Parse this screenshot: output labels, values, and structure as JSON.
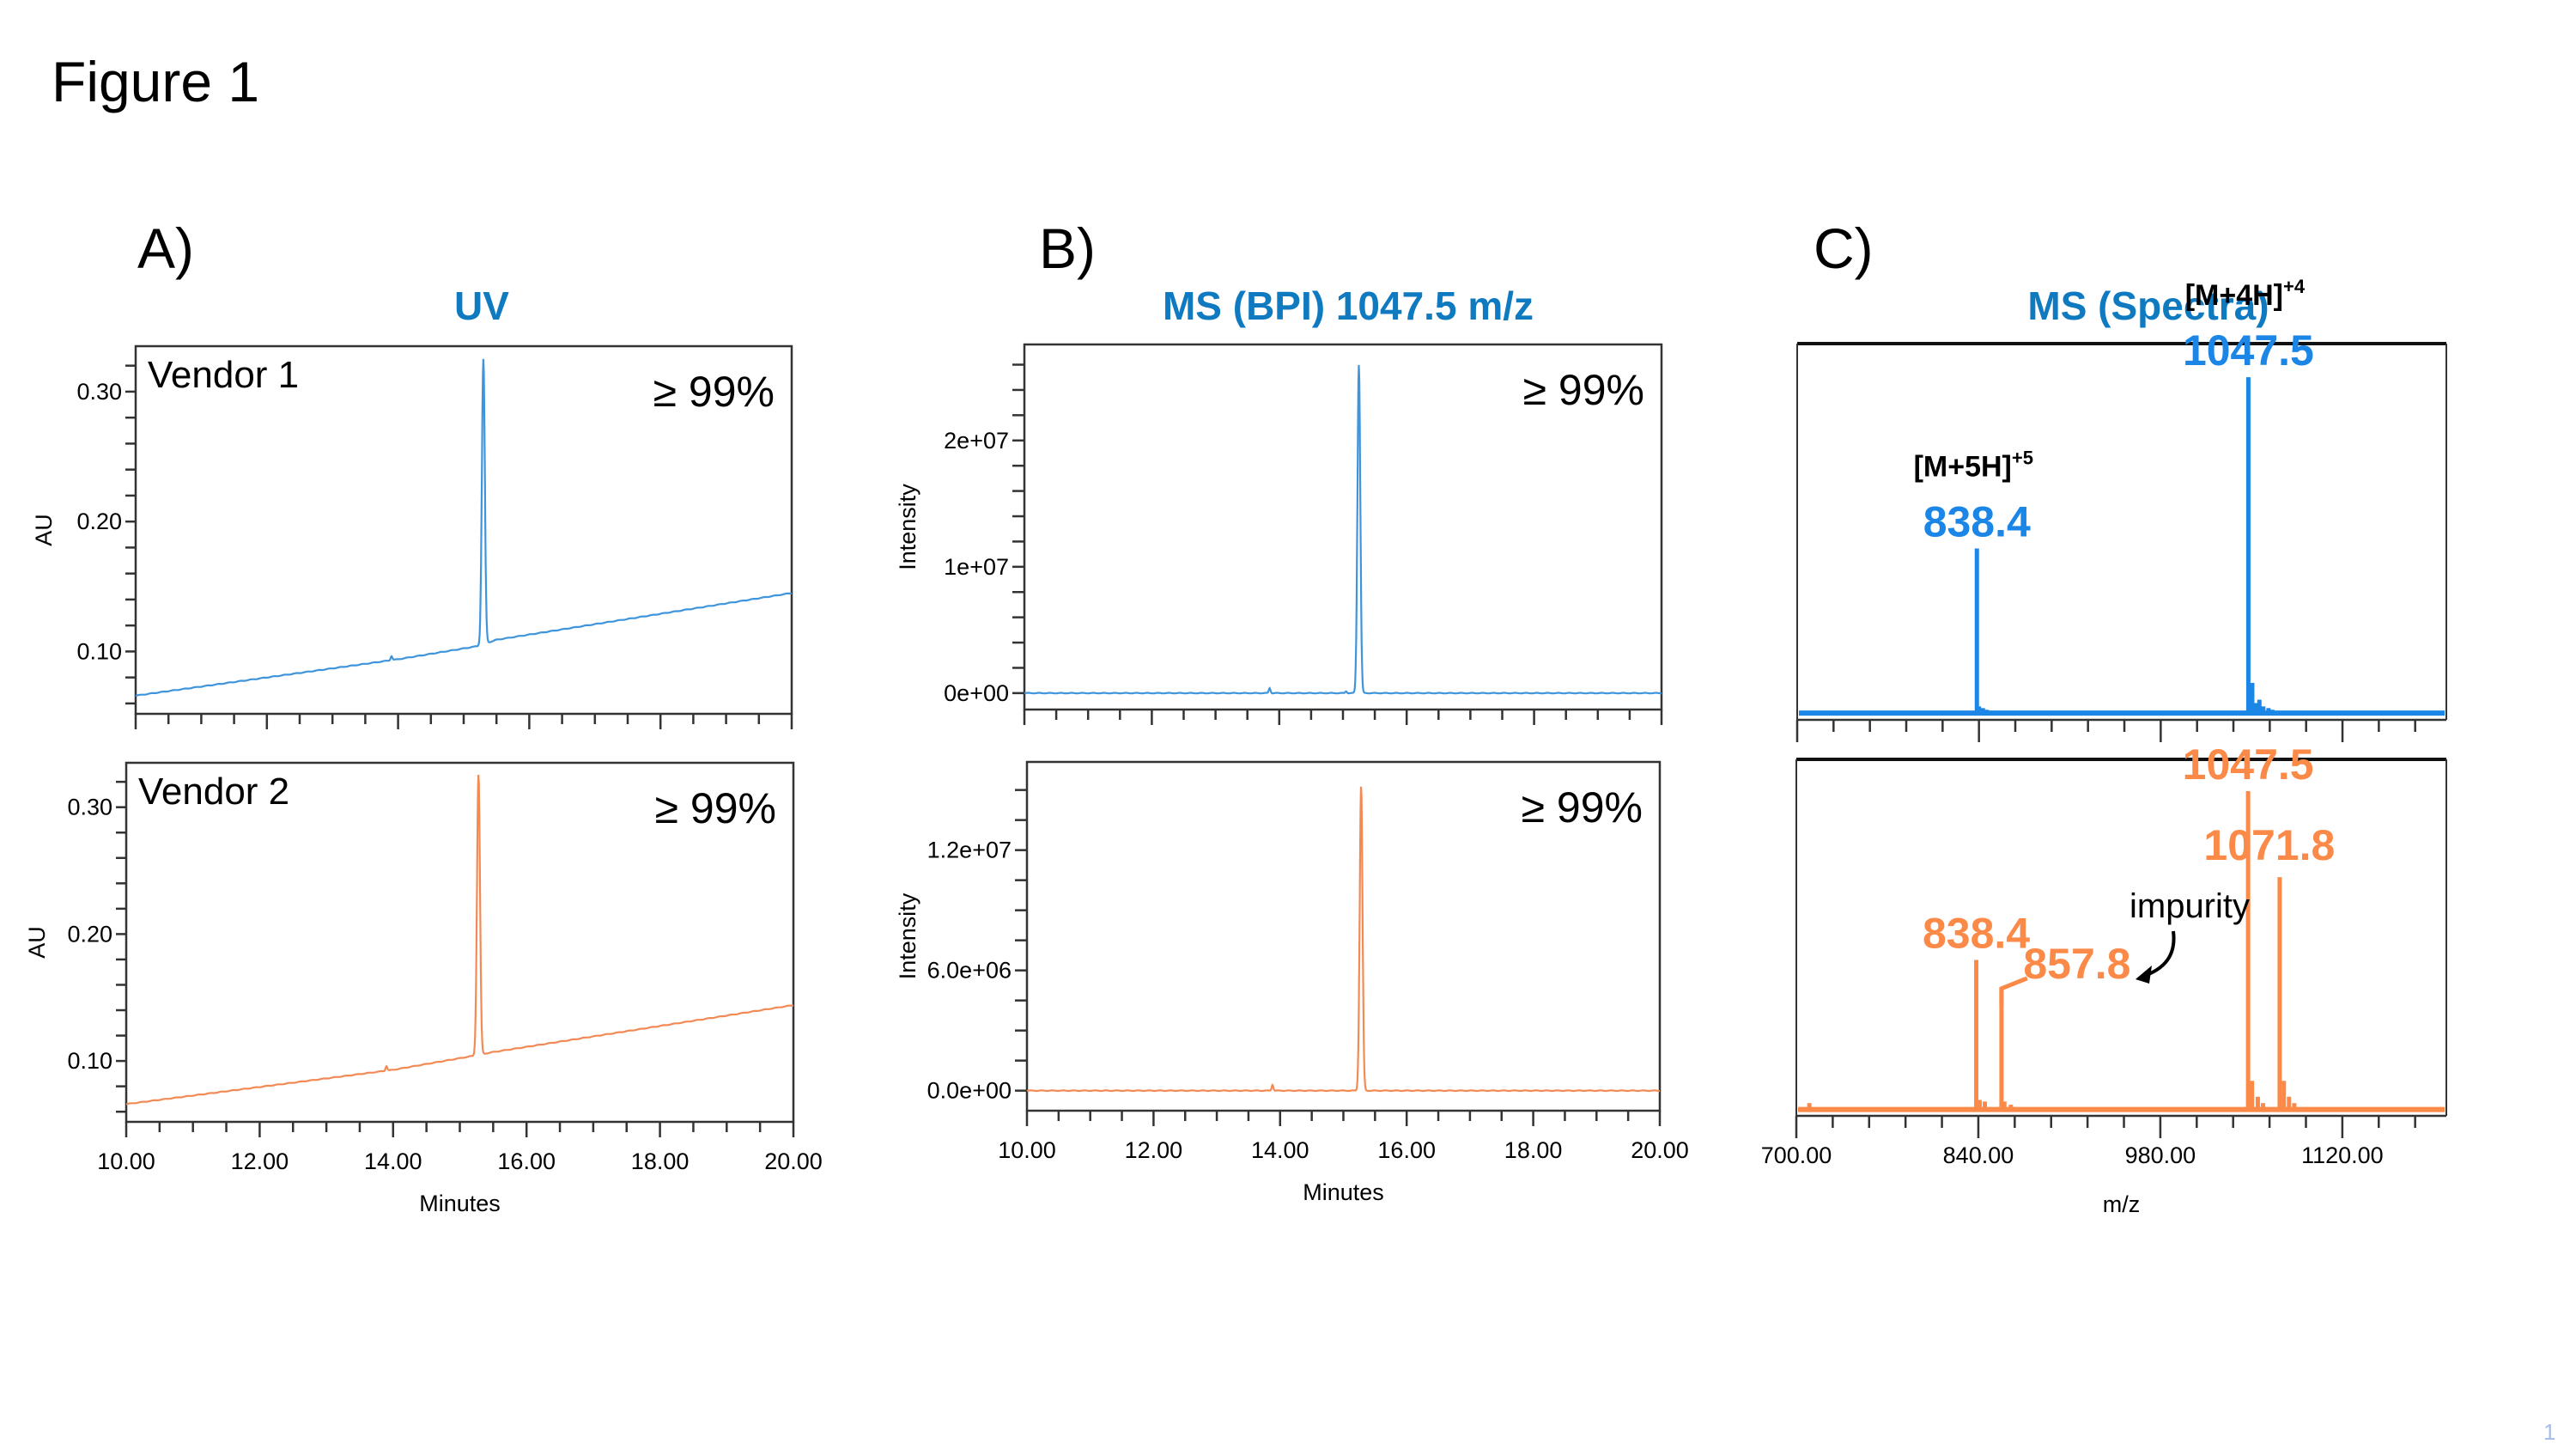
{
  "figure": {
    "title": "Figure 1",
    "page_number": "1",
    "colors": {
      "title_blue": "#0f7ac0",
      "vendor1": "#3f95dc",
      "vendor2": "#f28a56",
      "spectrum_vendor1": "#1b86e6",
      "spectrum_vendor2": "#fb8a49"
    }
  },
  "chart_data": [
    {
      "id": "A-vendor1",
      "panel": "A)",
      "column_title": "UV",
      "type": "line",
      "title": "UV",
      "annotation": "Vendor 1",
      "purity": "≥ 99%",
      "xlabel": "Minutes",
      "ylabel": "AU",
      "xlim": [
        10,
        20
      ],
      "ylim": [
        0.052,
        0.335
      ],
      "xticks": [],
      "yticks": [
        0.1,
        0.2,
        0.3
      ],
      "ytick_labels": [
        "0.10",
        "0.20",
        "0.30"
      ],
      "series": [
        {
          "name": "Vendor 1",
          "color": "#3f95dc",
          "baseline": [
            [
              10,
              0.066
            ],
            [
              14,
              0.094
            ],
            [
              15.2,
              0.104
            ],
            [
              15.5,
              0.109
            ],
            [
              20,
              0.145
            ]
          ],
          "peaks": [
            {
              "x": 15.3,
              "y": 0.325,
              "width": 0.05
            },
            {
              "x": 13.9,
              "y": 0.0965,
              "width": 0.03
            }
          ]
        }
      ]
    },
    {
      "id": "A-vendor2",
      "panel": "A)",
      "type": "line",
      "annotation": "Vendor 2",
      "purity": "≥ 99%",
      "xlabel": "Minutes",
      "ylabel": "AU",
      "xlim": [
        10,
        20
      ],
      "ylim": [
        0.052,
        0.335
      ],
      "xticks": [
        10,
        12,
        14,
        16,
        18,
        20
      ],
      "xtick_labels": [
        "10.00",
        "12.00",
        "14.00",
        "16.00",
        "18.00",
        "20.00"
      ],
      "yticks": [
        0.1,
        0.2,
        0.3
      ],
      "ytick_labels": [
        "0.10",
        "0.20",
        "0.30"
      ],
      "series": [
        {
          "name": "Vendor 2",
          "color": "#f28a56",
          "baseline": [
            [
              10,
              0.066
            ],
            [
              14,
              0.093
            ],
            [
              15.2,
              0.104
            ],
            [
              15.5,
              0.107
            ],
            [
              20,
              0.144
            ]
          ],
          "peaks": [
            {
              "x": 15.28,
              "y": 0.326,
              "width": 0.05
            },
            {
              "x": 13.9,
              "y": 0.096,
              "width": 0.03
            }
          ]
        }
      ]
    },
    {
      "id": "B-vendor1",
      "panel": "B)",
      "column_title": "MS (BPI) 1047.5 m/z",
      "type": "line",
      "purity": "≥ 99%",
      "xlabel": "Minutes",
      "ylabel": "Intensity",
      "xlim": [
        10,
        20
      ],
      "ylim": [
        -1300000,
        27600000
      ],
      "xticks": [],
      "yticks": [
        0,
        10000000,
        20000000
      ],
      "ytick_labels": [
        "0e+00",
        "1e+07",
        "2e+07"
      ],
      "series": [
        {
          "name": "Vendor 1",
          "color": "#3f95dc",
          "baseline": [
            [
              10,
              0
            ],
            [
              20,
              0
            ]
          ],
          "peaks": [
            {
              "x": 15.25,
              "y": 26000000,
              "width": 0.05
            },
            {
              "x": 13.85,
              "y": 400000,
              "width": 0.03
            },
            {
              "x": 15.05,
              "y": 150000,
              "width": 0.03
            }
          ]
        }
      ]
    },
    {
      "id": "B-vendor2",
      "panel": "B)",
      "type": "line",
      "purity": "≥ 99%",
      "xlabel": "Minutes",
      "ylabel": "Intensity",
      "xlim": [
        10,
        20
      ],
      "ylim": [
        -1000000,
        16400000
      ],
      "xticks": [
        10,
        12,
        14,
        16,
        18,
        20
      ],
      "xtick_labels": [
        "10.00",
        "12.00",
        "14.00",
        "16.00",
        "18.00",
        "20.00"
      ],
      "yticks": [
        0,
        6000000,
        12000000
      ],
      "ytick_labels": [
        "0.0e+00",
        "6.0e+06",
        "1.2e+07"
      ],
      "series": [
        {
          "name": "Vendor 2",
          "color": "#f28a56",
          "baseline": [
            [
              10,
              0
            ],
            [
              20,
              0
            ]
          ],
          "peaks": [
            {
              "x": 15.28,
              "y": 15200000,
              "width": 0.05
            },
            {
              "x": 13.88,
              "y": 300000,
              "width": 0.03
            }
          ]
        }
      ]
    },
    {
      "id": "C-vendor1",
      "panel": "C)",
      "column_title": "MS (Spectra)",
      "type": "spectrum",
      "xlabel": "m/z",
      "xlim": [
        700,
        1200
      ],
      "ylim": [
        -2,
        110
      ],
      "xticks": [],
      "series": [
        {
          "name": "Vendor 1",
          "color": "#1b86e6",
          "peaks": [
            {
              "mz": 838.4,
              "rel": 49
            },
            {
              "mz": 840,
              "rel": 2
            },
            {
              "mz": 843,
              "rel": 1.5
            },
            {
              "mz": 846,
              "rel": 1
            },
            {
              "mz": 1047.5,
              "rel": 100
            },
            {
              "mz": 1050.5,
              "rel": 9
            },
            {
              "mz": 1053,
              "rel": 3
            },
            {
              "mz": 1056,
              "rel": 4
            },
            {
              "mz": 1059,
              "rel": 2
            },
            {
              "mz": 1063,
              "rel": 1.5
            },
            {
              "mz": 1066,
              "rel": 1
            }
          ],
          "labels": [
            {
              "mz": 838.4,
              "text": "838.4",
              "ion": "[M+5H]",
              "charge": "+5"
            },
            {
              "mz": 1047.5,
              "text": "1047.5",
              "ion": "[M+4H]",
              "charge": "+4"
            }
          ]
        }
      ]
    },
    {
      "id": "C-vendor2",
      "panel": "C)",
      "type": "spectrum",
      "xlabel": "m/z",
      "xlim": [
        700,
        1200
      ],
      "ylim": [
        -2,
        110
      ],
      "xticks": [
        700,
        840,
        980,
        1120
      ],
      "xtick_labels": [
        "700.00",
        "840.00",
        "980.00",
        "1120.00"
      ],
      "series": [
        {
          "name": "Vendor 2",
          "color": "#fb8a49",
          "peaks": [
            {
              "mz": 710,
              "rel": 2
            },
            {
              "mz": 838.4,
              "rel": 47
            },
            {
              "mz": 841,
              "rel": 3
            },
            {
              "mz": 845,
              "rel": 2.5
            },
            {
              "mz": 857.8,
              "rel": 38
            },
            {
              "mz": 860,
              "rel": 2.5
            },
            {
              "mz": 865,
              "rel": 1.5
            },
            {
              "mz": 1047.5,
              "rel": 100
            },
            {
              "mz": 1050.5,
              "rel": 9
            },
            {
              "mz": 1055,
              "rel": 4
            },
            {
              "mz": 1059,
              "rel": 2
            },
            {
              "mz": 1071.8,
              "rel": 73
            },
            {
              "mz": 1075,
              "rel": 9
            },
            {
              "mz": 1079,
              "rel": 4
            },
            {
              "mz": 1083,
              "rel": 2
            }
          ],
          "labels": [
            {
              "mz": 838.4,
              "text": "838.4"
            },
            {
              "mz": 857.8,
              "text": "857.8"
            },
            {
              "mz": 1047.5,
              "text": "1047.5"
            },
            {
              "mz": 1071.8,
              "text": "1071.8"
            }
          ],
          "annotation": {
            "text": "impurity",
            "points_to": 857.8
          }
        }
      ]
    }
  ]
}
